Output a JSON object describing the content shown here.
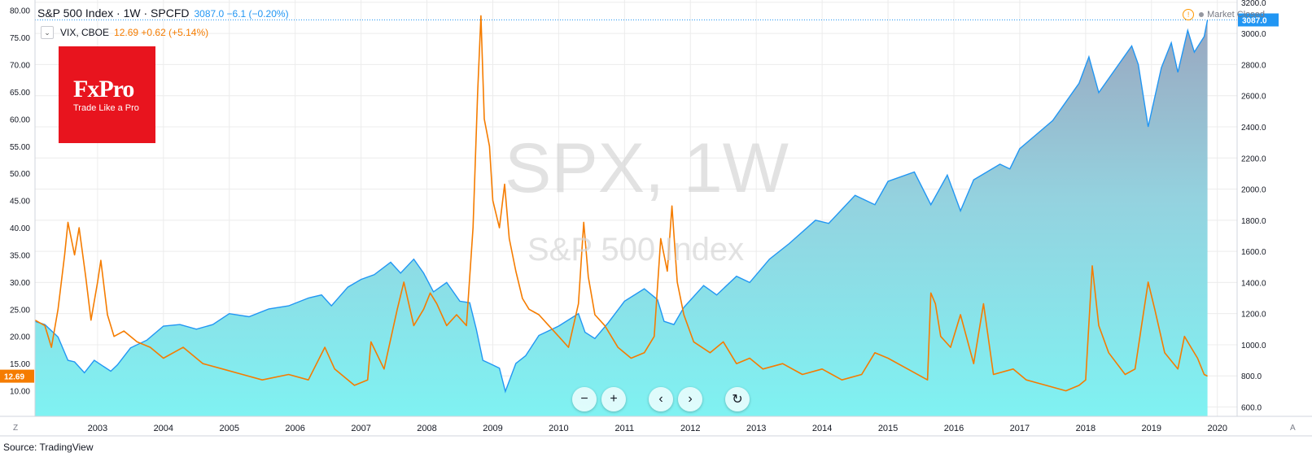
{
  "header": {
    "title": "S&P 500 Index · 1W · SPCFD",
    "values": "3087.0  −6.1 (−0.20%)"
  },
  "vix_legend": {
    "title": "VIX, CBOE",
    "values": "12.69  +0.62 (+5.14%)"
  },
  "status": {
    "text": "Market Closed"
  },
  "logo": {
    "brand": "FxPro",
    "tagline": "Trade Like a Pro"
  },
  "watermark": {
    "symbol": "SPX, 1W",
    "name": "S&P 500 Index"
  },
  "source": "Source: TradingView",
  "corner_left": "Z",
  "corner_right": "A",
  "controls": [
    "zoom-out",
    "zoom-in",
    "scroll-left",
    "scroll-right",
    "reset"
  ],
  "colors": {
    "spx_line": "#2196f3",
    "vix_line": "#f57c00",
    "grid": "#ececec"
  },
  "chart_data": {
    "type": "line",
    "x_ticks": [
      "2003",
      "2004",
      "2005",
      "2006",
      "2007",
      "2008",
      "2009",
      "2010",
      "2011",
      "2012",
      "2013",
      "2014",
      "2015",
      "2016",
      "2017",
      "2018",
      "2019",
      "2020"
    ],
    "xlim": [
      2002.05,
      2020.3
    ],
    "left_axis": {
      "ticks": [
        "80.00",
        "75.00",
        "70.00",
        "65.00",
        "60.00",
        "55.00",
        "50.00",
        "45.00",
        "40.00",
        "35.00",
        "30.00",
        "25.00",
        "20.00",
        "15.00",
        "10.00"
      ],
      "range": [
        5.3,
        81.9
      ]
    },
    "right_axis": {
      "ticks": [
        "3200.0",
        "3000.0",
        "2800.0",
        "2600.0",
        "2400.0",
        "2200.0",
        "2000.0",
        "1800.0",
        "1600.0",
        "1400.0",
        "1200.0",
        "1000.0",
        "800.0",
        "600.0"
      ],
      "range": [
        540,
        3215
      ]
    },
    "last_labels": {
      "vix": "12.69",
      "spx": "3087.0"
    },
    "series": [
      {
        "name": "S&P 500 Index",
        "axis": "right",
        "type": "area",
        "points": [
          [
            2002.05,
            1150
          ],
          [
            2002.2,
            1130
          ],
          [
            2002.4,
            1050
          ],
          [
            2002.55,
            900
          ],
          [
            2002.65,
            890
          ],
          [
            2002.8,
            820
          ],
          [
            2002.95,
            900
          ],
          [
            2003.2,
            830
          ],
          [
            2003.3,
            870
          ],
          [
            2003.5,
            980
          ],
          [
            2003.75,
            1030
          ],
          [
            2004.0,
            1120
          ],
          [
            2004.25,
            1130
          ],
          [
            2004.5,
            1100
          ],
          [
            2004.75,
            1130
          ],
          [
            2005.0,
            1200
          ],
          [
            2005.3,
            1180
          ],
          [
            2005.6,
            1230
          ],
          [
            2005.9,
            1250
          ],
          [
            2006.2,
            1300
          ],
          [
            2006.4,
            1320
          ],
          [
            2006.55,
            1250
          ],
          [
            2006.8,
            1370
          ],
          [
            2007.0,
            1420
          ],
          [
            2007.2,
            1450
          ],
          [
            2007.45,
            1530
          ],
          [
            2007.6,
            1460
          ],
          [
            2007.8,
            1550
          ],
          [
            2007.95,
            1460
          ],
          [
            2008.1,
            1340
          ],
          [
            2008.3,
            1400
          ],
          [
            2008.5,
            1280
          ],
          [
            2008.65,
            1270
          ],
          [
            2008.75,
            1100
          ],
          [
            2008.85,
            900
          ],
          [
            2008.95,
            880
          ],
          [
            2009.1,
            850
          ],
          [
            2009.19,
            700
          ],
          [
            2009.35,
            880
          ],
          [
            2009.5,
            930
          ],
          [
            2009.7,
            1060
          ],
          [
            2010.0,
            1120
          ],
          [
            2010.3,
            1200
          ],
          [
            2010.4,
            1080
          ],
          [
            2010.55,
            1040
          ],
          [
            2010.75,
            1140
          ],
          [
            2011.0,
            1280
          ],
          [
            2011.3,
            1360
          ],
          [
            2011.5,
            1290
          ],
          [
            2011.6,
            1150
          ],
          [
            2011.75,
            1130
          ],
          [
            2011.9,
            1240
          ],
          [
            2012.2,
            1380
          ],
          [
            2012.4,
            1320
          ],
          [
            2012.7,
            1440
          ],
          [
            2012.9,
            1400
          ],
          [
            2013.2,
            1550
          ],
          [
            2013.5,
            1650
          ],
          [
            2013.9,
            1800
          ],
          [
            2014.1,
            1780
          ],
          [
            2014.5,
            1960
          ],
          [
            2014.8,
            1900
          ],
          [
            2015.0,
            2050
          ],
          [
            2015.4,
            2110
          ],
          [
            2015.65,
            1900
          ],
          [
            2015.9,
            2090
          ],
          [
            2016.1,
            1860
          ],
          [
            2016.3,
            2060
          ],
          [
            2016.7,
            2160
          ],
          [
            2016.85,
            2130
          ],
          [
            2017.0,
            2260
          ],
          [
            2017.5,
            2440
          ],
          [
            2017.9,
            2680
          ],
          [
            2018.05,
            2850
          ],
          [
            2018.2,
            2620
          ],
          [
            2018.7,
            2920
          ],
          [
            2018.8,
            2800
          ],
          [
            2018.95,
            2400
          ],
          [
            2019.15,
            2780
          ],
          [
            2019.3,
            2940
          ],
          [
            2019.4,
            2750
          ],
          [
            2019.55,
            3020
          ],
          [
            2019.65,
            2880
          ],
          [
            2019.8,
            2980
          ],
          [
            2019.85,
            3087
          ]
        ]
      },
      {
        "name": "VIX, CBOE",
        "axis": "left",
        "type": "line",
        "points": [
          [
            2002.05,
            23
          ],
          [
            2002.2,
            22
          ],
          [
            2002.3,
            18
          ],
          [
            2002.4,
            25
          ],
          [
            2002.5,
            35
          ],
          [
            2002.55,
            41
          ],
          [
            2002.65,
            35
          ],
          [
            2002.72,
            40
          ],
          [
            2002.82,
            31
          ],
          [
            2002.9,
            23
          ],
          [
            2003.0,
            30
          ],
          [
            2003.05,
            34
          ],
          [
            2003.15,
            24
          ],
          [
            2003.25,
            20
          ],
          [
            2003.4,
            21
          ],
          [
            2003.6,
            19
          ],
          [
            2003.8,
            18
          ],
          [
            2004.0,
            16
          ],
          [
            2004.3,
            18
          ],
          [
            2004.6,
            15
          ],
          [
            2004.9,
            14
          ],
          [
            2005.2,
            13
          ],
          [
            2005.5,
            12
          ],
          [
            2005.9,
            13
          ],
          [
            2006.2,
            12
          ],
          [
            2006.45,
            18
          ],
          [
            2006.6,
            14
          ],
          [
            2006.9,
            11
          ],
          [
            2007.1,
            12
          ],
          [
            2007.15,
            19
          ],
          [
            2007.35,
            14
          ],
          [
            2007.55,
            25
          ],
          [
            2007.65,
            30
          ],
          [
            2007.8,
            22
          ],
          [
            2007.95,
            25
          ],
          [
            2008.05,
            28
          ],
          [
            2008.15,
            26
          ],
          [
            2008.3,
            22
          ],
          [
            2008.45,
            24
          ],
          [
            2008.6,
            22
          ],
          [
            2008.7,
            40
          ],
          [
            2008.77,
            65
          ],
          [
            2008.82,
            79
          ],
          [
            2008.87,
            60
          ],
          [
            2008.95,
            55
          ],
          [
            2009.0,
            45
          ],
          [
            2009.1,
            40
          ],
          [
            2009.18,
            48
          ],
          [
            2009.25,
            38
          ],
          [
            2009.35,
            32
          ],
          [
            2009.45,
            27
          ],
          [
            2009.55,
            25
          ],
          [
            2009.7,
            24
          ],
          [
            2009.85,
            22
          ],
          [
            2010.0,
            20
          ],
          [
            2010.15,
            18
          ],
          [
            2010.3,
            26
          ],
          [
            2010.38,
            41
          ],
          [
            2010.45,
            31
          ],
          [
            2010.55,
            24
          ],
          [
            2010.7,
            22
          ],
          [
            2010.9,
            18
          ],
          [
            2011.1,
            16
          ],
          [
            2011.3,
            17
          ],
          [
            2011.45,
            20
          ],
          [
            2011.55,
            38
          ],
          [
            2011.65,
            32
          ],
          [
            2011.72,
            44
          ],
          [
            2011.8,
            30
          ],
          [
            2011.9,
            24
          ],
          [
            2012.05,
            19
          ],
          [
            2012.3,
            17
          ],
          [
            2012.5,
            19
          ],
          [
            2012.7,
            15
          ],
          [
            2012.9,
            16
          ],
          [
            2013.1,
            14
          ],
          [
            2013.4,
            15
          ],
          [
            2013.7,
            13
          ],
          [
            2014.0,
            14
          ],
          [
            2014.3,
            12
          ],
          [
            2014.6,
            13
          ],
          [
            2014.8,
            17
          ],
          [
            2015.0,
            16
          ],
          [
            2015.3,
            14
          ],
          [
            2015.6,
            12
          ],
          [
            2015.65,
            28
          ],
          [
            2015.72,
            26
          ],
          [
            2015.8,
            20
          ],
          [
            2015.95,
            18
          ],
          [
            2016.1,
            24
          ],
          [
            2016.3,
            15
          ],
          [
            2016.45,
            26
          ],
          [
            2016.6,
            13
          ],
          [
            2016.9,
            14
          ],
          [
            2017.1,
            12
          ],
          [
            2017.4,
            11
          ],
          [
            2017.7,
            10
          ],
          [
            2017.9,
            11
          ],
          [
            2018.0,
            12
          ],
          [
            2018.1,
            33
          ],
          [
            2018.2,
            22
          ],
          [
            2018.35,
            17
          ],
          [
            2018.6,
            13
          ],
          [
            2018.75,
            14
          ],
          [
            2018.85,
            22
          ],
          [
            2018.95,
            30
          ],
          [
            2019.05,
            25
          ],
          [
            2019.2,
            17
          ],
          [
            2019.4,
            14
          ],
          [
            2019.5,
            20
          ],
          [
            2019.6,
            18
          ],
          [
            2019.7,
            16
          ],
          [
            2019.8,
            13
          ],
          [
            2019.85,
            12.69
          ]
        ]
      }
    ]
  }
}
